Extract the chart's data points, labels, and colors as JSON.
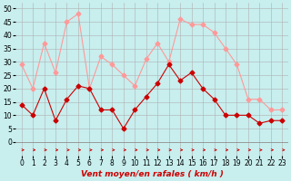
{
  "hours": [
    0,
    1,
    2,
    3,
    4,
    5,
    6,
    7,
    8,
    9,
    10,
    11,
    12,
    13,
    14,
    15,
    16,
    17,
    18,
    19,
    20,
    21,
    22,
    23
  ],
  "wind_avg": [
    14,
    10,
    20,
    8,
    16,
    21,
    20,
    12,
    12,
    5,
    12,
    17,
    22,
    29,
    23,
    26,
    20,
    16,
    10,
    10,
    10,
    7,
    8,
    8
  ],
  "wind_gust": [
    29,
    20,
    37,
    26,
    45,
    48,
    20,
    32,
    29,
    25,
    21,
    31,
    37,
    30,
    46,
    44,
    44,
    41,
    35,
    29,
    16,
    16,
    12,
    12
  ],
  "bg_color": "#c8eeee",
  "grid_color": "#b0b0b0",
  "line_avg_color": "#cc0000",
  "line_gust_color": "#ff9999",
  "xlabel": "Vent moyen/en rafales ( km/h )",
  "xlabel_color": "#cc0000",
  "xlabel_fontsize": 6.5,
  "yticks": [
    0,
    5,
    10,
    15,
    20,
    25,
    30,
    35,
    40,
    45,
    50
  ],
  "ylim": [
    -5,
    52
  ],
  "xlim": [
    -0.5,
    23.5
  ],
  "marker_size": 2.5,
  "line_width": 0.8,
  "tick_fontsize": 5.5
}
